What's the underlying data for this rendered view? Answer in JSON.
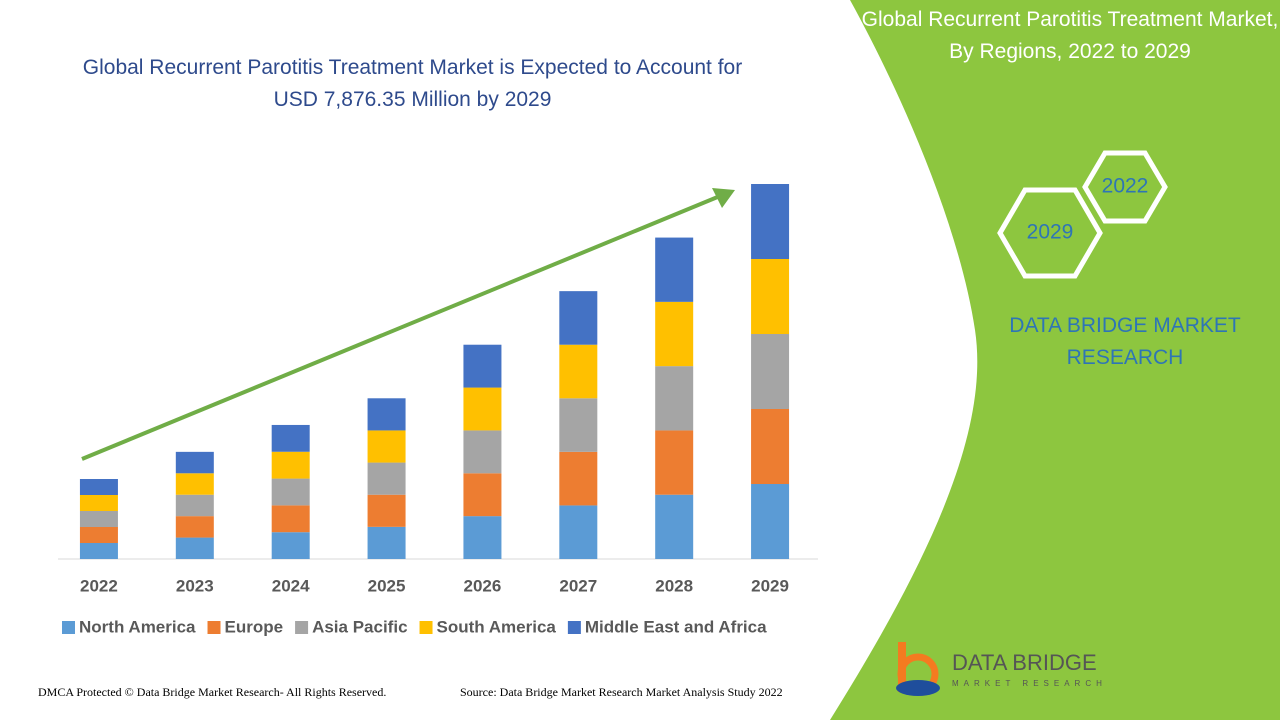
{
  "chart_data": {
    "type": "stacked-bar",
    "title": "Global Recurrent Parotitis Treatment Market is Expected to Account for USD 7,876.35 Million by 2029",
    "categories": [
      "2022",
      "2023",
      "2024",
      "2025",
      "2026",
      "2027",
      "2028",
      "2029"
    ],
    "series": [
      {
        "name": "North America",
        "color": "#5b9bd5",
        "values": [
          336,
          450,
          563,
          675,
          900,
          1125,
          1350,
          1575
        ]
      },
      {
        "name": "Europe",
        "color": "#ed7d31",
        "values": [
          336,
          450,
          563,
          675,
          900,
          1125,
          1350,
          1575
        ]
      },
      {
        "name": "Asia Pacific",
        "color": "#a5a5a5",
        "values": [
          336,
          450,
          563,
          675,
          900,
          1125,
          1350,
          1575
        ]
      },
      {
        "name": "South America",
        "color": "#ffc000",
        "values": [
          336,
          450,
          563,
          675,
          900,
          1125,
          1350,
          1575
        ]
      },
      {
        "name": "Middle East and Africa",
        "color": "#4472c4",
        "values": [
          336,
          450,
          563,
          675,
          900,
          1125,
          1350,
          1575
        ]
      }
    ]
  },
  "panel_title": "Global Recurrent Parotitis Treatment Market, By Regions, 2022 to 2029",
  "badges": [
    "2022",
    "2029"
  ],
  "brand": "DATA BRIDGE MARKET RESEARCH",
  "logo": {
    "name": "DATA BRIDGE",
    "tagline": "MARKET RESEARCH"
  },
  "footer": {
    "left": "DMCA Protected © Data Bridge Market Research- All Rights Reserved.",
    "right": "Source: Data Bridge Market Research Market Analysis Study 2022"
  }
}
